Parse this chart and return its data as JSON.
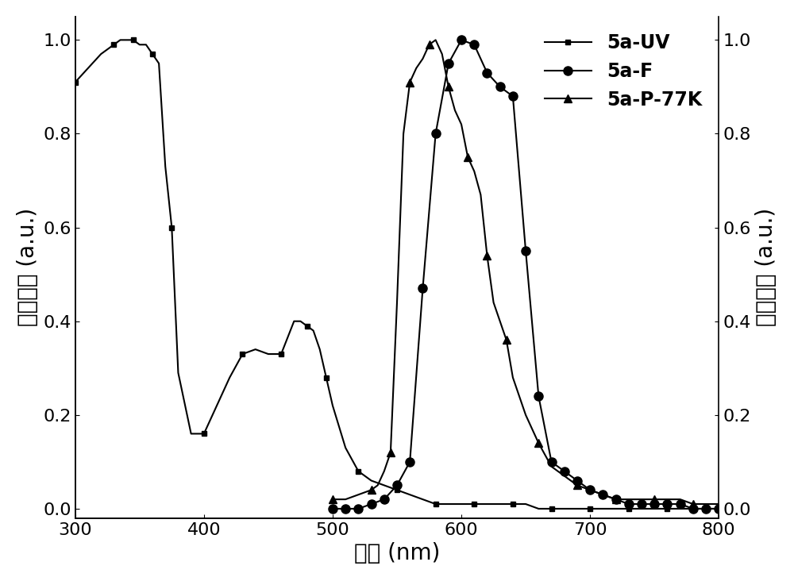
{
  "xlabel": "波长 (nm)",
  "ylabel_left": "吸收强度 (a.u.)",
  "ylabel_right": "发光强度 (a.u.)",
  "xlim": [
    300,
    800
  ],
  "ylim": [
    -0.02,
    1.05
  ],
  "xticks": [
    300,
    400,
    500,
    600,
    700,
    800
  ],
  "yticks": [
    0.0,
    0.2,
    0.4,
    0.6,
    0.8,
    1.0
  ],
  "legend_labels": [
    "5a-UV",
    "5a-F",
    "5a-P-77K"
  ],
  "uv_x": [
    300,
    310,
    320,
    330,
    335,
    340,
    345,
    350,
    355,
    360,
    365,
    370,
    375,
    380,
    390,
    400,
    410,
    420,
    430,
    440,
    450,
    460,
    470,
    475,
    480,
    485,
    490,
    495,
    500,
    510,
    520,
    530,
    540,
    550,
    560,
    570,
    580,
    590,
    600,
    610,
    620,
    630,
    640,
    650,
    660,
    670,
    680,
    690,
    700,
    710,
    720,
    730,
    740,
    750,
    760,
    770,
    780,
    790,
    800
  ],
  "uv_y": [
    0.91,
    0.94,
    0.97,
    0.99,
    1.0,
    1.0,
    1.0,
    0.99,
    0.99,
    0.97,
    0.95,
    0.73,
    0.6,
    0.29,
    0.16,
    0.16,
    0.22,
    0.28,
    0.33,
    0.34,
    0.33,
    0.33,
    0.4,
    0.4,
    0.39,
    0.38,
    0.34,
    0.28,
    0.22,
    0.13,
    0.08,
    0.06,
    0.05,
    0.04,
    0.03,
    0.02,
    0.01,
    0.01,
    0.01,
    0.01,
    0.01,
    0.01,
    0.01,
    0.01,
    0.0,
    0.0,
    0.0,
    0.0,
    0.0,
    0.0,
    0.0,
    0.0,
    0.0,
    0.0,
    0.0,
    0.0,
    0.0,
    0.0,
    0.0
  ],
  "fl_x": [
    500,
    510,
    520,
    530,
    540,
    550,
    560,
    570,
    580,
    590,
    600,
    610,
    620,
    630,
    640,
    650,
    660,
    670,
    680,
    690,
    700,
    710,
    720,
    730,
    740,
    750,
    760,
    770,
    780,
    790,
    800
  ],
  "fl_y": [
    0.0,
    0.0,
    0.0,
    0.01,
    0.02,
    0.05,
    0.1,
    0.47,
    0.8,
    0.95,
    1.0,
    0.99,
    0.93,
    0.9,
    0.88,
    0.55,
    0.24,
    0.1,
    0.08,
    0.06,
    0.04,
    0.03,
    0.02,
    0.01,
    0.01,
    0.01,
    0.01,
    0.01,
    0.0,
    0.0,
    0.0
  ],
  "ph_x": [
    500,
    510,
    520,
    530,
    535,
    540,
    545,
    550,
    555,
    560,
    565,
    570,
    575,
    580,
    585,
    590,
    595,
    600,
    605,
    610,
    615,
    620,
    625,
    630,
    635,
    640,
    650,
    660,
    670,
    680,
    690,
    700,
    710,
    720,
    730,
    740,
    750,
    760,
    770,
    780,
    790,
    800
  ],
  "ph_y": [
    0.02,
    0.02,
    0.03,
    0.04,
    0.05,
    0.08,
    0.12,
    0.44,
    0.8,
    0.91,
    0.94,
    0.96,
    0.99,
    1.0,
    0.97,
    0.9,
    0.85,
    0.82,
    0.75,
    0.72,
    0.67,
    0.54,
    0.44,
    0.4,
    0.36,
    0.28,
    0.2,
    0.14,
    0.09,
    0.07,
    0.05,
    0.04,
    0.03,
    0.02,
    0.02,
    0.02,
    0.02,
    0.02,
    0.02,
    0.01,
    0.01,
    0.01
  ],
  "background_color": "#ffffff",
  "line_color": "#000000",
  "marker_uv": "s",
  "marker_fl": "o",
  "marker_ph": "^",
  "marker_size_uv": 5,
  "marker_size_fl": 8,
  "marker_size_ph": 7,
  "marker_every_uv": 3,
  "marker_every_fl": 2,
  "marker_every_ph": 3,
  "line_width": 1.5,
  "font_size_label": 20,
  "font_size_tick": 16,
  "font_size_legend": 17
}
